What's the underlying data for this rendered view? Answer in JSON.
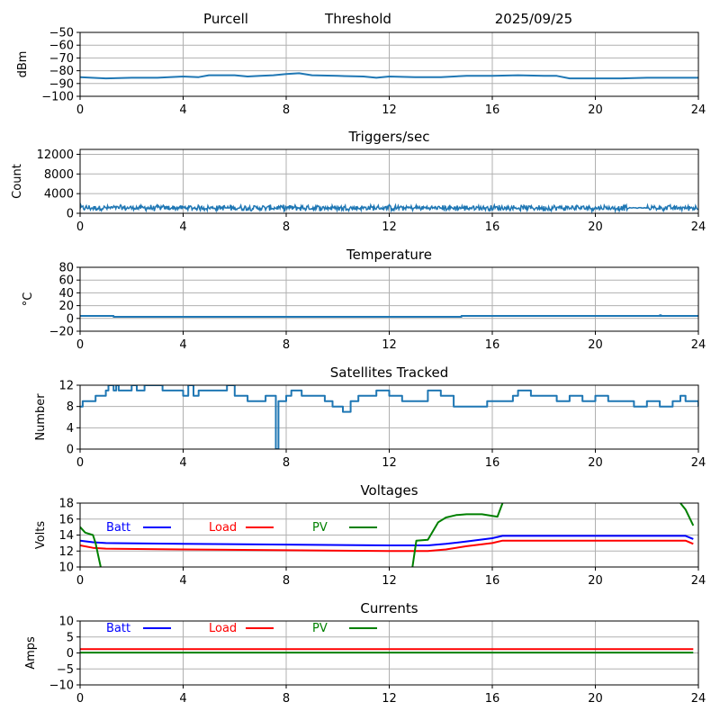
{
  "header": {
    "station": "Purcell",
    "mode": "Threshold",
    "date": "2025/09/25"
  },
  "chart_data": [
    {
      "id": "threshold",
      "type": "line",
      "title": "",
      "xlabel": "",
      "ylabel": "dBm",
      "xlim": [
        0,
        24
      ],
      "ylim": [
        -100,
        -50
      ],
      "xticks": [
        0,
        4,
        8,
        12,
        16,
        20,
        24
      ],
      "yticks": [
        -100,
        -90,
        -80,
        -70,
        -60,
        -50
      ],
      "ytick_labels": [
        "−100",
        "−90",
        "−80",
        "−70",
        "−60",
        "−50"
      ],
      "grid": true,
      "series": [
        {
          "name": "Threshold",
          "color": "#1f77b4",
          "x": [
            0,
            1,
            2,
            3,
            4,
            4.6,
            5,
            6,
            6.5,
            7,
            7.5,
            8,
            8.5,
            9,
            10,
            11,
            11.5,
            12,
            13,
            14,
            15,
            16,
            17,
            18,
            18.5,
            19,
            20,
            21,
            22,
            23,
            24
          ],
          "y": [
            -85,
            -86,
            -85.5,
            -85.5,
            -84.5,
            -85,
            -83.5,
            -83.5,
            -84.5,
            -84,
            -83.5,
            -82.5,
            -82,
            -83.5,
            -84,
            -84.5,
            -85.5,
            -84.5,
            -85,
            -85,
            -84,
            -84,
            -83.5,
            -84,
            -84,
            -86,
            -86,
            -86,
            -85.5,
            -85.5,
            -85.5
          ]
        }
      ]
    },
    {
      "id": "triggers",
      "type": "line",
      "title": "Triggers/sec",
      "xlabel": "",
      "ylabel": "Count",
      "xlim": [
        0,
        24
      ],
      "ylim": [
        0,
        13000
      ],
      "xticks": [
        0,
        4,
        8,
        12,
        16,
        20,
        24
      ],
      "yticks": [
        0,
        4000,
        8000,
        12000
      ],
      "ytick_labels": [
        "0",
        "4000",
        "8000",
        "12000"
      ],
      "grid": true,
      "series": [
        {
          "name": "Triggers",
          "color": "#1f77b4",
          "x": [
            0,
            24
          ],
          "y_base": 1100,
          "y_noise": 700,
          "quiet_segments": [
            [
              21.3,
              22.0
            ]
          ]
        }
      ]
    },
    {
      "id": "temperature",
      "type": "line",
      "title": "Temperature",
      "xlabel": "",
      "ylabel": "°C",
      "xlim": [
        0,
        24
      ],
      "ylim": [
        -20,
        80
      ],
      "xticks": [
        0,
        4,
        8,
        12,
        16,
        20,
        24
      ],
      "yticks": [
        -20,
        0,
        20,
        40,
        60,
        80
      ],
      "ytick_labels": [
        "−20",
        "0",
        "20",
        "40",
        "60",
        "80"
      ],
      "grid": true,
      "series": [
        {
          "name": "Temperature",
          "color": "#1f77b4",
          "x": [
            0,
            1.3,
            1.3,
            14.8,
            14.8,
            22.5,
            22.5,
            22.55,
            22.55,
            24
          ],
          "y": [
            4,
            4,
            2.5,
            2.5,
            4,
            4,
            5,
            5,
            4,
            4
          ]
        }
      ]
    },
    {
      "id": "satellites",
      "type": "line",
      "title": "Satellites Tracked",
      "xlabel": "",
      "ylabel": "Number",
      "xlim": [
        0,
        24
      ],
      "ylim": [
        0,
        12
      ],
      "xticks": [
        0,
        4,
        8,
        12,
        16,
        20,
        24
      ],
      "yticks": [
        0,
        4,
        8,
        12
      ],
      "ytick_labels": [
        "0",
        "4",
        "8",
        "12"
      ],
      "grid": true,
      "series": [
        {
          "name": "Satellites",
          "color": "#1f77b4",
          "step": true,
          "x": [
            0,
            0.1,
            0.2,
            0.6,
            0.8,
            1.0,
            1.1,
            1.3,
            1.4,
            1.5,
            1.7,
            1.9,
            2.0,
            2.2,
            2.5,
            3.2,
            4.0,
            4.2,
            4.4,
            4.6,
            5.0,
            5.7,
            6.0,
            6.5,
            7.0,
            7.2,
            7.5,
            7.6,
            7.7,
            7.9,
            8.0,
            8.2,
            8.6,
            9.0,
            9.5,
            9.8,
            10.2,
            10.5,
            10.8,
            11.0,
            11.5,
            12.0,
            12.5,
            13.0,
            13.5,
            14.0,
            14.5,
            15.0,
            15.5,
            15.8,
            16.0,
            16.5,
            16.8,
            17.0,
            17.5,
            18.0,
            18.5,
            19.0,
            19.5,
            20.0,
            20.5,
            21.0,
            21.5,
            22.0,
            22.5,
            23.0,
            23.3,
            23.5,
            24.0
          ],
          "y": [
            8,
            9,
            9,
            10,
            10,
            11,
            12,
            11,
            12,
            11,
            11,
            11,
            12,
            11,
            12,
            11,
            10,
            12,
            10,
            11,
            11,
            12,
            10,
            9,
            9,
            10,
            10,
            0,
            9,
            9,
            10,
            11,
            10,
            10,
            9,
            8,
            7,
            9,
            10,
            10,
            11,
            10,
            9,
            9,
            11,
            10,
            8,
            8,
            8,
            9,
            9,
            9,
            10,
            11,
            10,
            10,
            9,
            10,
            9,
            10,
            9,
            9,
            8,
            9,
            8,
            9,
            10,
            9,
            8
          ]
        }
      ]
    },
    {
      "id": "voltages",
      "type": "line",
      "title": "Voltages",
      "xlabel": "",
      "ylabel": "Volts",
      "xlim": [
        0,
        24
      ],
      "ylim": [
        10,
        18
      ],
      "xticks": [
        0,
        4,
        8,
        12,
        16,
        20,
        24
      ],
      "yticks": [
        10,
        12,
        14,
        16,
        18
      ],
      "ytick_labels": [
        "10",
        "12",
        "14",
        "16",
        "18"
      ],
      "grid": true,
      "legend": {
        "placement": "top-left-inline",
        "entries": [
          "Batt",
          "Load",
          "PV"
        ]
      },
      "series": [
        {
          "name": "Batt",
          "color": "#0000ff",
          "x": [
            0,
            0.5,
            1,
            4,
            8,
            12,
            13.5,
            14.2,
            15,
            16,
            16.4,
            20,
            23.5,
            23.8
          ],
          "y": [
            13.3,
            13.1,
            13.0,
            12.9,
            12.8,
            12.7,
            12.7,
            12.9,
            13.2,
            13.6,
            13.9,
            13.9,
            13.9,
            13.5
          ]
        },
        {
          "name": "Load",
          "color": "#ff0000",
          "x": [
            0,
            0.5,
            1,
            4,
            8,
            12,
            13.5,
            14.2,
            15,
            16,
            16.4,
            20,
            23.5,
            23.8
          ],
          "y": [
            12.7,
            12.4,
            12.3,
            12.2,
            12.1,
            12.0,
            12.0,
            12.2,
            12.6,
            13.0,
            13.3,
            13.3,
            13.3,
            12.9
          ]
        },
        {
          "name": "PV",
          "color": "#008000",
          "x": [
            0,
            0.2,
            0.5,
            0.6,
            0.7,
            0.8,
            null,
            12.9,
            13.05,
            13.5,
            13.9,
            14.2,
            14.6,
            15.0,
            15.6,
            16.2,
            16.4,
            16.6,
            null,
            23.3,
            23.5,
            23.8
          ],
          "y": [
            15.0,
            14.3,
            14.0,
            13.0,
            11.5,
            10.0,
            null,
            10.0,
            13.3,
            13.4,
            15.6,
            16.2,
            16.5,
            16.6,
            16.6,
            16.3,
            18.0,
            18.5,
            null,
            18.0,
            17.2,
            15.2
          ]
        }
      ]
    },
    {
      "id": "currents",
      "type": "line",
      "title": "Currents",
      "xlabel": "",
      "ylabel": "Amps",
      "xlim": [
        0,
        24
      ],
      "ylim": [
        -10,
        10
      ],
      "xticks": [
        0,
        4,
        8,
        12,
        16,
        20,
        24
      ],
      "yticks": [
        -10,
        -5,
        0,
        5,
        10
      ],
      "ytick_labels": [
        "−10",
        "−5",
        "0",
        "5",
        "10"
      ],
      "grid": true,
      "legend": {
        "placement": "top-left-inline",
        "entries": [
          "Batt",
          "Load",
          "PV"
        ]
      },
      "series": [
        {
          "name": "Batt",
          "color": "#0000ff",
          "x": [],
          "y": []
        },
        {
          "name": "Load",
          "color": "#ff0000",
          "x": [
            0,
            23.8
          ],
          "y": [
            1.2,
            1.2
          ]
        },
        {
          "name": "PV",
          "color": "#008000",
          "x": [
            0,
            23.8
          ],
          "y": [
            0.1,
            0.1
          ]
        }
      ]
    }
  ]
}
